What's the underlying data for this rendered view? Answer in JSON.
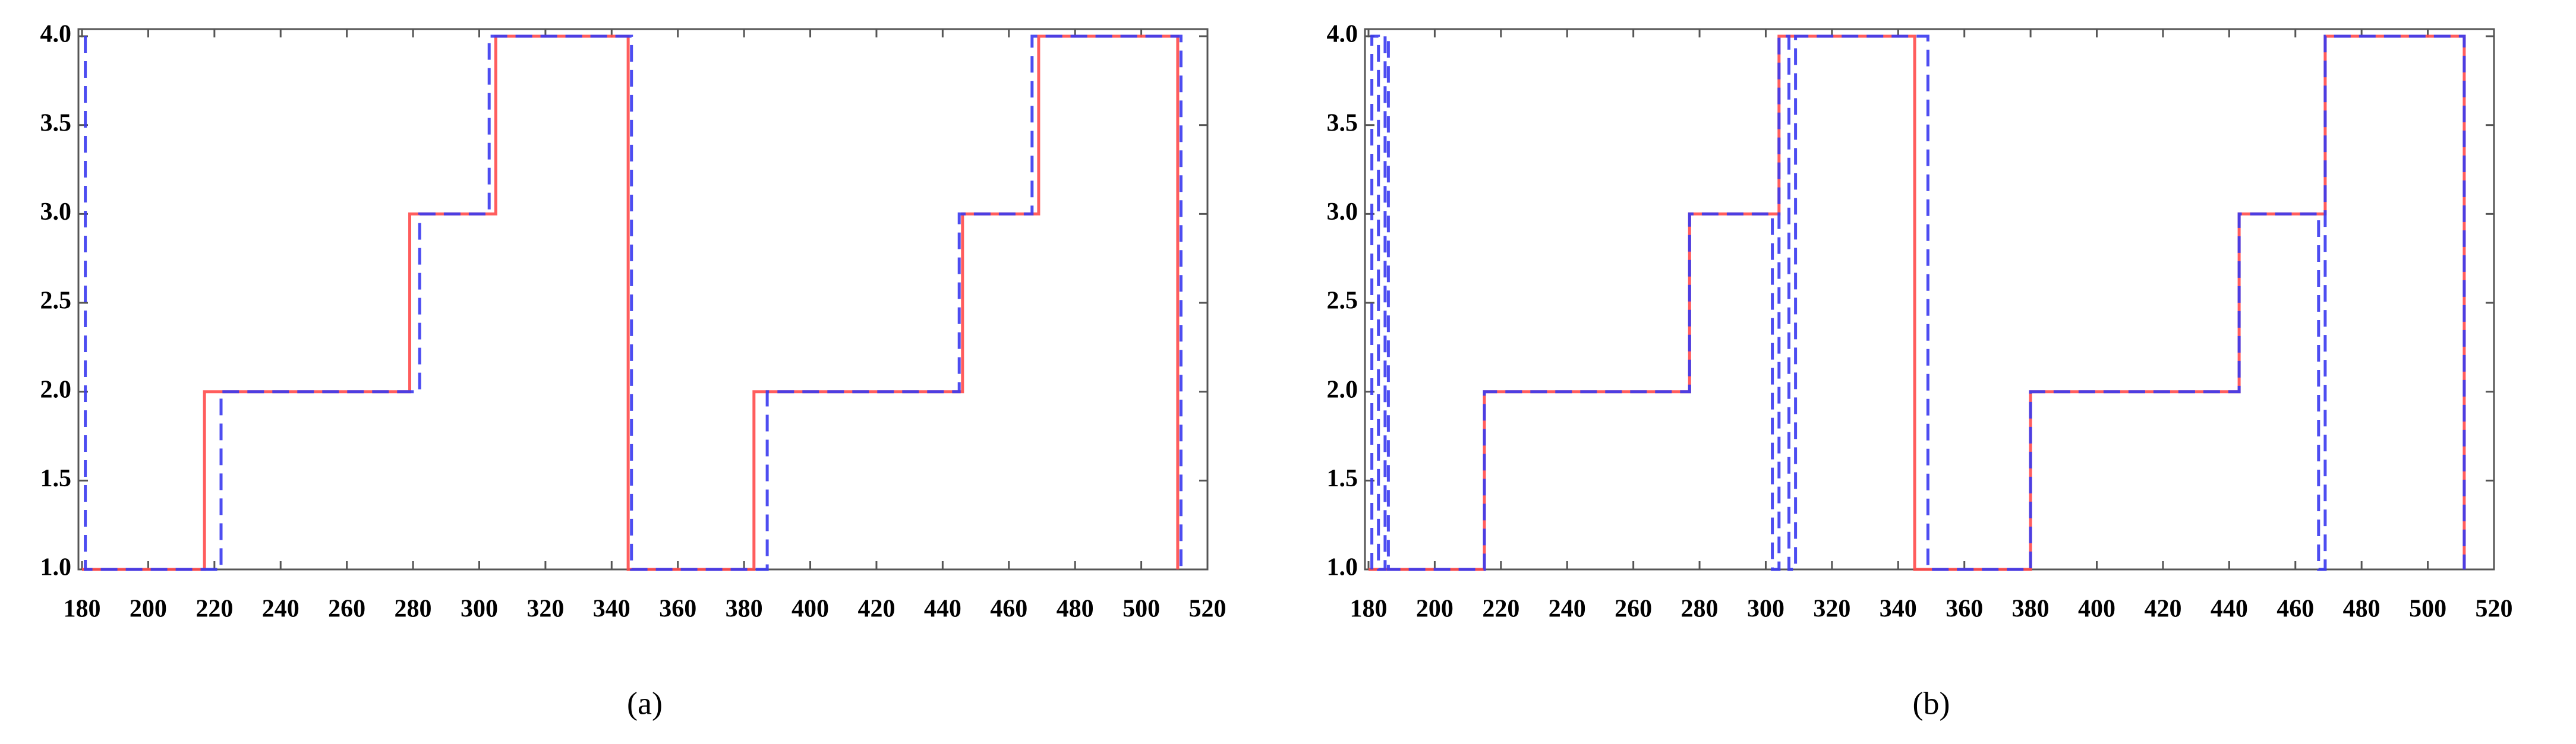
{
  "chart_data": [
    {
      "type": "line",
      "caption": "(a)",
      "xlim": [
        180,
        520
      ],
      "ylim": [
        1,
        4
      ],
      "xticks": [
        180,
        200,
        220,
        240,
        260,
        280,
        300,
        320,
        340,
        360,
        380,
        400,
        420,
        440,
        460,
        480,
        500,
        520
      ],
      "yticks": [
        {
          "value": 1,
          "label": "1.0"
        },
        {
          "value": 1.5,
          "label": "1.5"
        },
        {
          "value": 2,
          "label": "2.0"
        },
        {
          "value": 2.5,
          "label": "2.5"
        },
        {
          "value": 3,
          "label": "3.0"
        },
        {
          "value": 3.5,
          "label": "3.5"
        },
        {
          "value": 4,
          "label": "4.0"
        }
      ],
      "grid": false,
      "series": [
        {
          "color": "#ff4b4b",
          "dash": "solid",
          "x": [
            180,
            217,
            217,
            279,
            279,
            305,
            305,
            345,
            345,
            383,
            383,
            446,
            446,
            469,
            469,
            511,
            511
          ],
          "values": [
            1,
            1,
            2,
            2,
            3,
            3,
            4,
            4,
            1,
            1,
            2,
            2,
            3,
            3,
            4,
            4,
            1
          ]
        },
        {
          "color": "#3a3af0",
          "dash": "dashed",
          "x": [
            181,
            181,
            222,
            222,
            282,
            282,
            303,
            303,
            346,
            346,
            387,
            387,
            445,
            445,
            467,
            467,
            512,
            512
          ],
          "values": [
            4,
            1,
            1,
            2,
            2,
            3,
            3,
            4,
            4,
            1,
            1,
            2,
            2,
            3,
            3,
            4,
            4,
            1
          ]
        }
      ]
    },
    {
      "type": "line",
      "caption": "(b)",
      "xlim": [
        180,
        520
      ],
      "ylim": [
        1,
        4
      ],
      "xticks": [
        180,
        200,
        220,
        240,
        260,
        280,
        300,
        320,
        340,
        360,
        380,
        400,
        420,
        440,
        460,
        480,
        500,
        520
      ],
      "yticks": [
        {
          "value": 1,
          "label": "1.0"
        },
        {
          "value": 1.5,
          "label": "1.5"
        },
        {
          "value": 2,
          "label": "2.0"
        },
        {
          "value": 2.5,
          "label": "2.5"
        },
        {
          "value": 3,
          "label": "3.0"
        },
        {
          "value": 3.5,
          "label": "3.5"
        },
        {
          "value": 4,
          "label": "4.0"
        }
      ],
      "grid": false,
      "series": [
        {
          "color": "#ff4b4b",
          "dash": "solid",
          "x": [
            180,
            215,
            215,
            277,
            277,
            304,
            304,
            345,
            345,
            380,
            380,
            443,
            443,
            469,
            469,
            511,
            511
          ],
          "values": [
            1,
            1,
            2,
            2,
            3,
            3,
            4,
            4,
            1,
            1,
            2,
            2,
            3,
            3,
            4,
            4,
            1
          ]
        },
        {
          "color": "#3a3af0",
          "dash": "dashed",
          "x": [
            181,
            181,
            183,
            183,
            185,
            185,
            186,
            186,
            215,
            215,
            277,
            277,
            302,
            302,
            304,
            304,
            307,
            307,
            309,
            309,
            349,
            349,
            380,
            380,
            443,
            443,
            467,
            467,
            469,
            469,
            511,
            511
          ],
          "values": [
            1,
            4,
            4,
            1,
            1,
            4,
            4,
            1,
            1,
            2,
            2,
            3,
            3,
            1,
            1,
            4,
            4,
            1,
            1,
            4,
            4,
            1,
            1,
            2,
            2,
            3,
            3,
            1,
            1,
            4,
            4,
            1
          ]
        }
      ]
    }
  ]
}
